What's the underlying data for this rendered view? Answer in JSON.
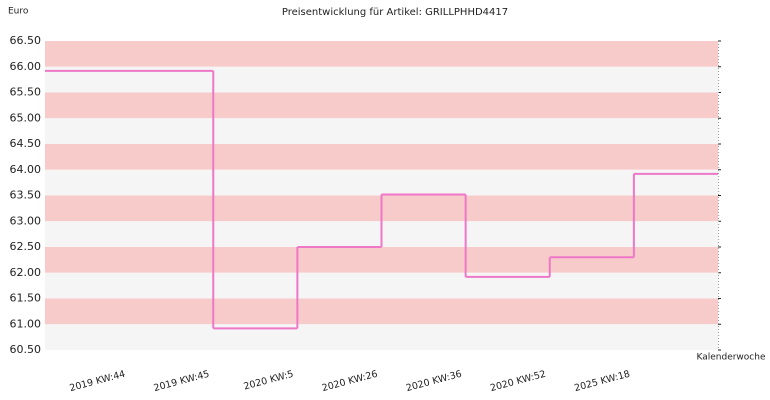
{
  "chart_data": {
    "type": "step-line",
    "title": "Preisentwicklung für Artikel: GRILLPHHD4417",
    "y_label": "Euro",
    "x_label": "Kalenderwoche",
    "categories": [
      "2019 KW:44",
      "2019 KW:45",
      "2020 KW:5",
      "2020 KW:26",
      "2020 KW:36",
      "2020 KW:52",
      "2025 KW:18"
    ],
    "values": [
      65.92,
      60.92,
      62.5,
      63.52,
      61.92,
      62.3,
      63.92
    ],
    "color": "#ee77c8",
    "band_colors": [
      "#f8cbcb",
      "#f5f5f5"
    ],
    "ylim": [
      60.5,
      66.5
    ],
    "yticks": [
      {
        "value": 66.5,
        "label": "66.50"
      },
      {
        "value": 66,
        "label": "66.00"
      },
      {
        "value": 65.5,
        "label": "65.50"
      },
      {
        "value": 65,
        "label": "65.00"
      },
      {
        "value": 64.5,
        "label": "64.50"
      },
      {
        "value": 64,
        "label": "64.00"
      },
      {
        "value": 63.5,
        "label": "63.50"
      },
      {
        "value": 63,
        "label": "63.00"
      },
      {
        "value": 62.5,
        "label": "62.50"
      },
      {
        "value": 62,
        "label": "62.00"
      },
      {
        "value": 61.5,
        "label": "61.50"
      },
      {
        "value": 61,
        "label": "61.00"
      },
      {
        "value": 60.5,
        "label": "60.50"
      }
    ],
    "grid": true
  }
}
